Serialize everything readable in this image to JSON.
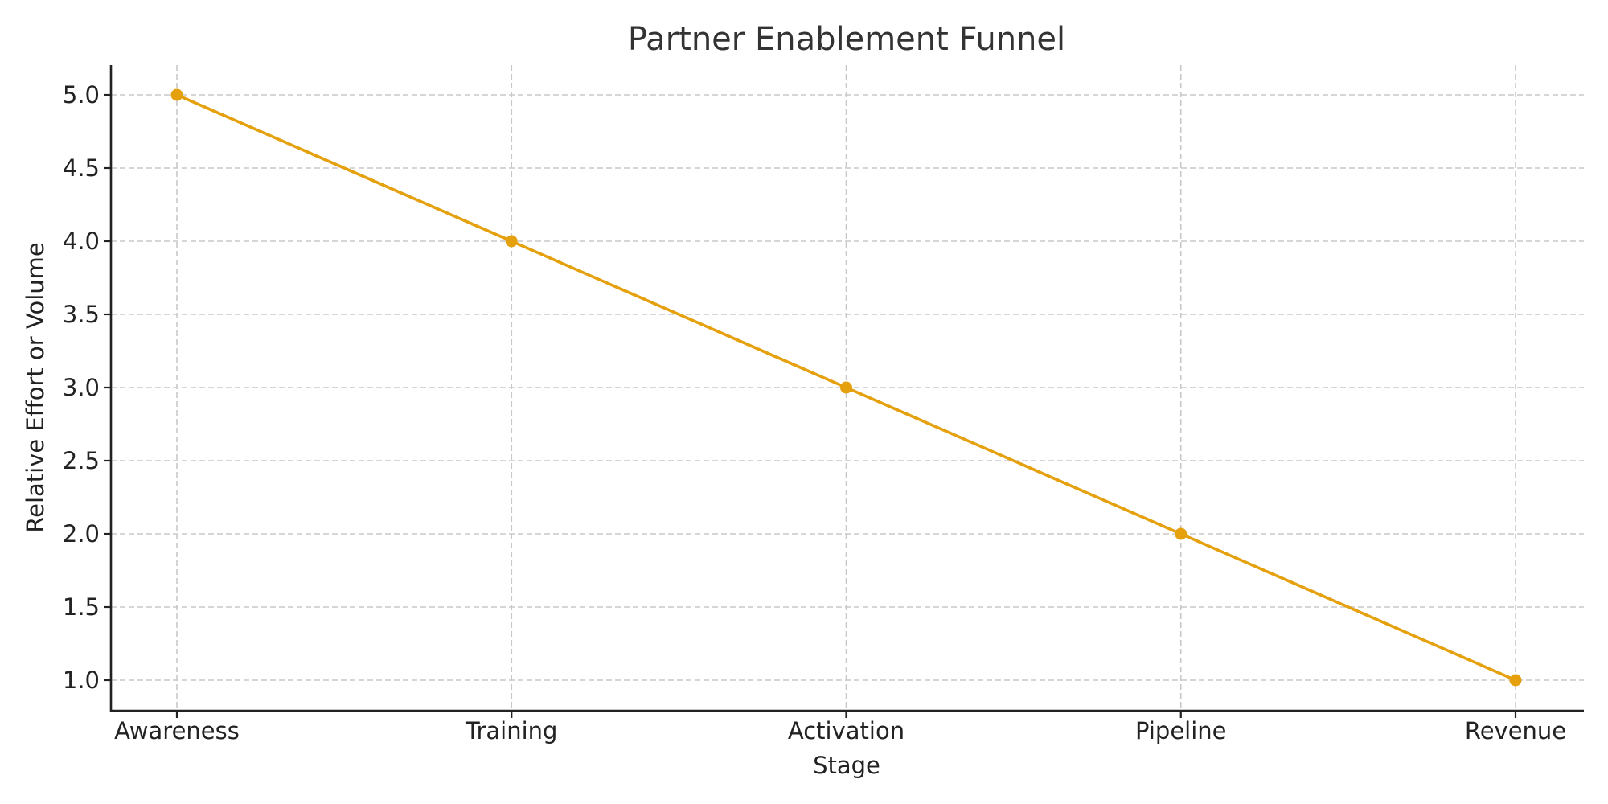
{
  "chart_data": {
    "type": "line",
    "title": "Partner Enablement Funnel",
    "xlabel": "Stage",
    "ylabel": "Relative Effort or Volume",
    "categories": [
      "Awareness",
      "Training",
      "Activation",
      "Pipeline",
      "Revenue"
    ],
    "series": [
      {
        "name": "Relative Effort or Volume",
        "values": [
          5,
          4,
          3,
          2,
          1
        ],
        "color": "#E5A00D",
        "marker": "circle"
      }
    ],
    "ylim": [
      0.8,
      5.2
    ],
    "yticks": [
      "1.0",
      "1.5",
      "2.0",
      "2.5",
      "3.0",
      "3.5",
      "4.0",
      "4.5",
      "5.0"
    ],
    "grid": true,
    "legend": "none"
  }
}
